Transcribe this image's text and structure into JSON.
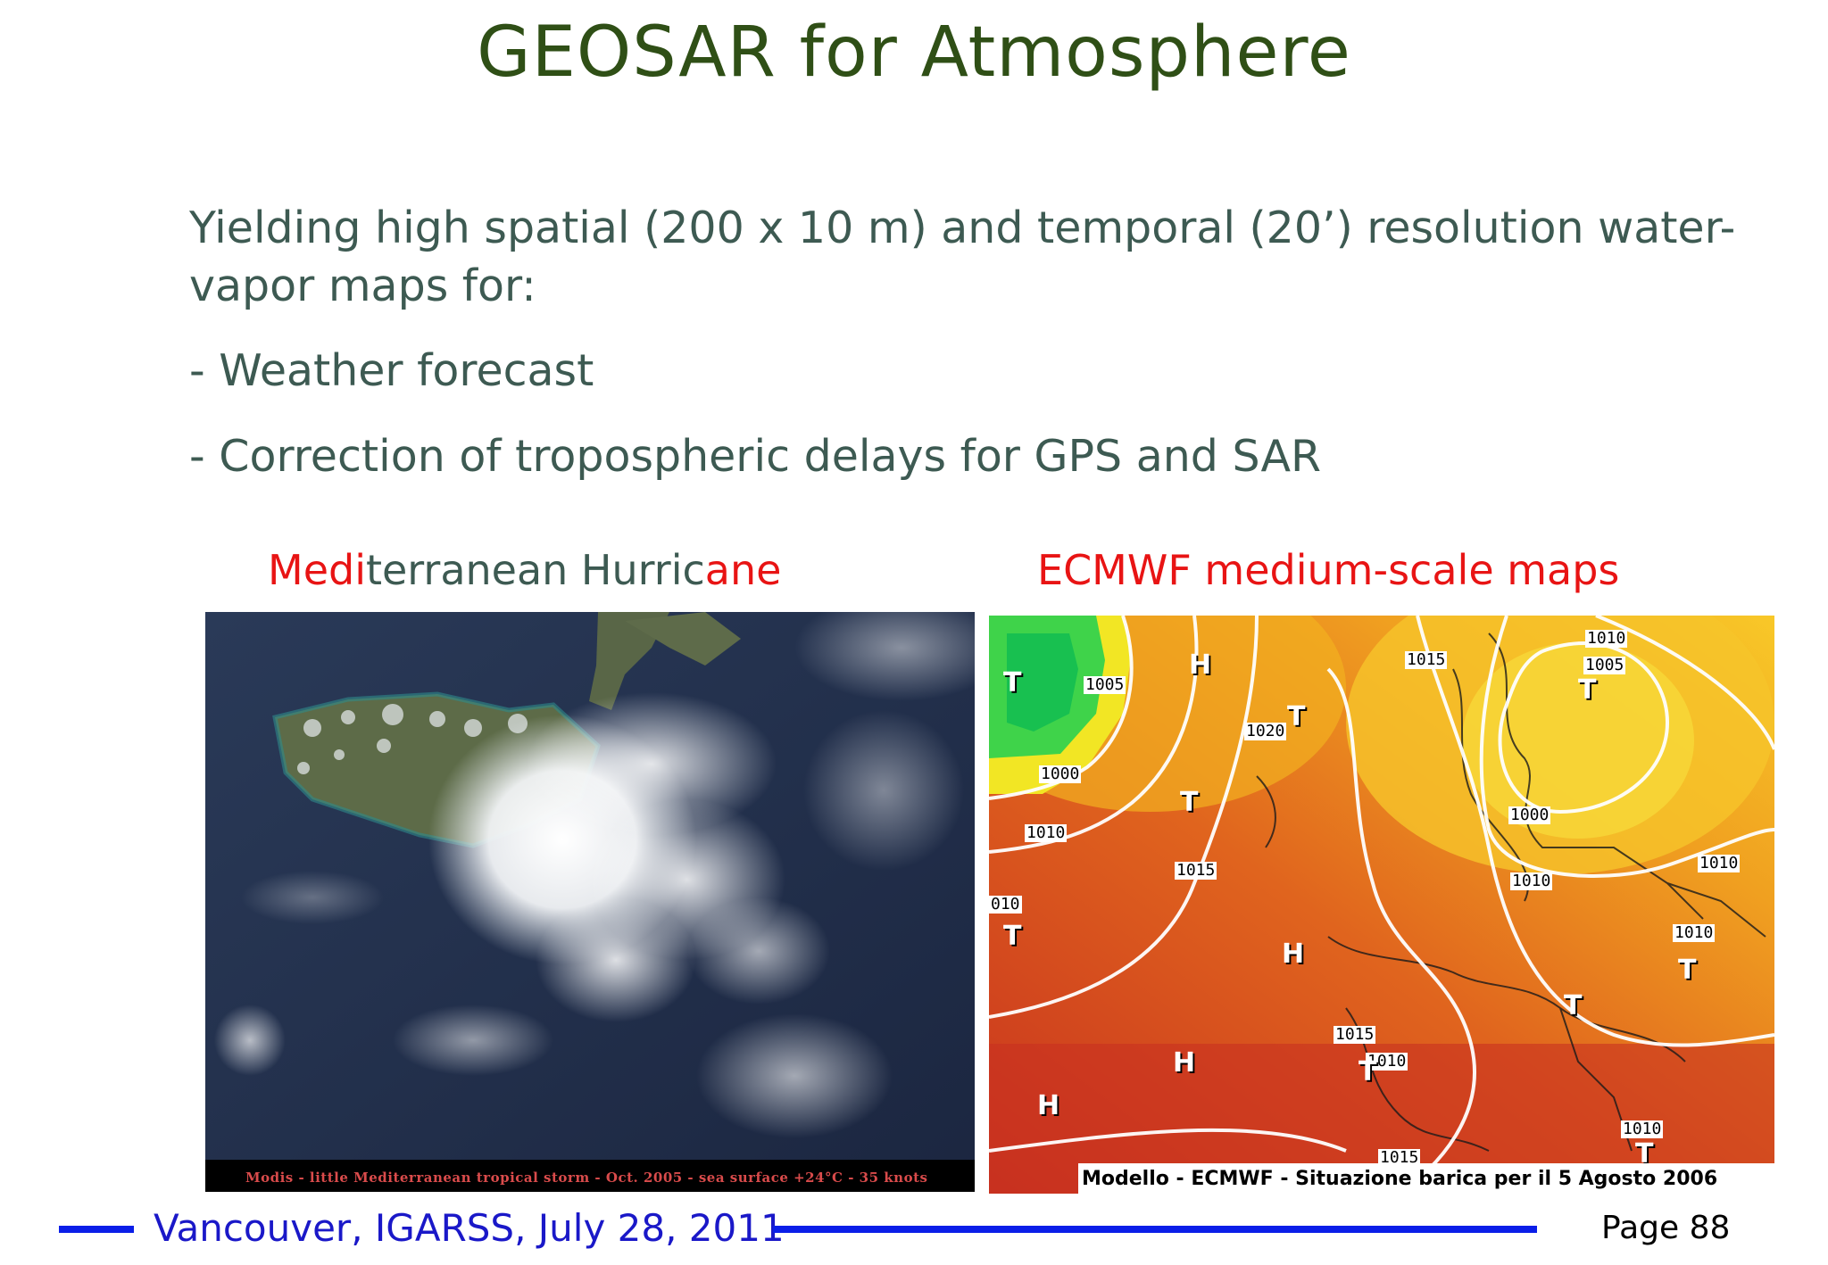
{
  "slide": {
    "title": "GEOSAR for Atmosphere",
    "body": {
      "line1": "Yielding high spatial (200 x 10 m) and temporal (20’) resolution water-",
      "line2": "vapor maps for:",
      "bullet1": "- Weather forecast",
      "bullet2": "- Correction of tropospheric delays for GPS and SAR"
    },
    "left_caption": {
      "part1": "Medi",
      "part2": "terranean Hurric",
      "part3": "ane"
    },
    "right_caption": "ECMWF medium-scale maps",
    "left_image": {
      "caption": "Modis - little Mediterranean tropical storm - Oct. 2005 - sea surface +24°C - 35 knots"
    },
    "right_image": {
      "caption": "Modello - ECMWF - Situazione barica per il 5 Agosto 2006",
      "isobar_labels": [
        "1005",
        "1015",
        "1010",
        "1005",
        "1020",
        "1000",
        "1010",
        "1015",
        "1000",
        "1010",
        "1010",
        "010",
        "1010",
        "1015",
        "1010",
        "1010",
        "1015"
      ],
      "pressure_symbols": [
        "T",
        "H",
        "T",
        "T",
        "T",
        "T",
        "H",
        "T",
        "T",
        "H",
        "H",
        "T",
        "T"
      ]
    },
    "footer": {
      "text": "Vancouver, IGARSS, July 28, 2011",
      "page": "Page 88"
    },
    "colors": {
      "title": "#2f4f16",
      "body": "#3d5a52",
      "caption_red": "#e81414",
      "footer_blue": "#1a18c8",
      "footer_line": "#0a1ee8"
    }
  }
}
